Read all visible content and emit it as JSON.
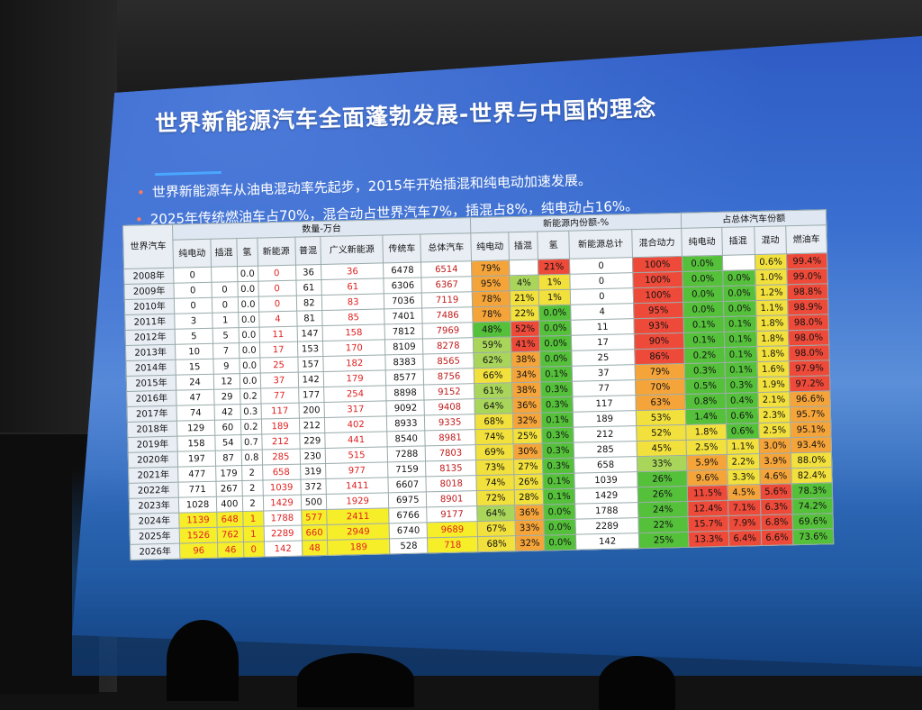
{
  "slide": {
    "title": "世界新能源汽车全面蓬勃发展-世界与中国的理念",
    "bullets": [
      "世界新能源车从油电混动率先起步，2015年开始插混和纯电动加速发展。",
      "2025年传统燃油车占70%，混合动占世界汽车7%，插混占8%，纯电动占16%。"
    ]
  },
  "table": {
    "corner": "世界汽车",
    "group_headers": [
      "数量-万台",
      "新能源内份额-%",
      "占总体汽车份额"
    ],
    "columns": [
      "纯电动",
      "插混",
      "氢",
      "新能源",
      "普混",
      "广义新能源",
      "传统车",
      "总体汽车",
      "纯电动",
      "插混",
      "氢",
      "新能源总计",
      "混合动力",
      "纯电动",
      "插混",
      "混动",
      "燃油车"
    ],
    "rows": [
      [
        "2008年",
        "0",
        "",
        "0.0",
        "0",
        "36",
        "36",
        "6478",
        "6514",
        "79%",
        "",
        "21%",
        "0",
        "100%",
        "0.0%",
        "",
        "0.6%",
        "99.4%"
      ],
      [
        "2009年",
        "0",
        "0",
        "0.0",
        "0",
        "61",
        "61",
        "6306",
        "6367",
        "95%",
        "4%",
        "1%",
        "0",
        "100%",
        "0.0%",
        "0.0%",
        "1.0%",
        "99.0%"
      ],
      [
        "2010年",
        "0",
        "0",
        "0.0",
        "0",
        "82",
        "83",
        "7036",
        "7119",
        "78%",
        "21%",
        "1%",
        "0",
        "100%",
        "0.0%",
        "0.0%",
        "1.2%",
        "98.8%"
      ],
      [
        "2011年",
        "3",
        "1",
        "0.0",
        "4",
        "81",
        "85",
        "7401",
        "7486",
        "78%",
        "22%",
        "0.0%",
        "4",
        "95%",
        "0.0%",
        "0.0%",
        "1.1%",
        "98.9%"
      ],
      [
        "2012年",
        "5",
        "5",
        "0.0",
        "11",
        "147",
        "158",
        "7812",
        "7969",
        "48%",
        "52%",
        "0.0%",
        "11",
        "93%",
        "0.1%",
        "0.1%",
        "1.8%",
        "98.0%"
      ],
      [
        "2013年",
        "10",
        "7",
        "0.0",
        "17",
        "153",
        "170",
        "8109",
        "8278",
        "59%",
        "41%",
        "0.0%",
        "17",
        "90%",
        "0.1%",
        "0.1%",
        "1.8%",
        "98.0%"
      ],
      [
        "2014年",
        "15",
        "9",
        "0.0",
        "25",
        "157",
        "182",
        "8383",
        "8565",
        "62%",
        "38%",
        "0.0%",
        "25",
        "86%",
        "0.2%",
        "0.1%",
        "1.8%",
        "98.0%"
      ],
      [
        "2015年",
        "24",
        "12",
        "0.0",
        "37",
        "142",
        "179",
        "8577",
        "8756",
        "66%",
        "34%",
        "0.1%",
        "37",
        "79%",
        "0.3%",
        "0.1%",
        "1.6%",
        "97.9%"
      ],
      [
        "2016年",
        "47",
        "29",
        "0.2",
        "77",
        "177",
        "254",
        "8898",
        "9152",
        "61%",
        "38%",
        "0.3%",
        "77",
        "70%",
        "0.5%",
        "0.3%",
        "1.9%",
        "97.2%"
      ],
      [
        "2017年",
        "74",
        "42",
        "0.3",
        "117",
        "200",
        "317",
        "9092",
        "9408",
        "64%",
        "36%",
        "0.3%",
        "117",
        "63%",
        "0.8%",
        "0.4%",
        "2.1%",
        "96.6%"
      ],
      [
        "2018年",
        "129",
        "60",
        "0.2",
        "189",
        "212",
        "402",
        "8933",
        "9335",
        "68%",
        "32%",
        "0.1%",
        "189",
        "53%",
        "1.4%",
        "0.6%",
        "2.3%",
        "95.7%"
      ],
      [
        "2019年",
        "158",
        "54",
        "0.7",
        "212",
        "229",
        "441",
        "8540",
        "8981",
        "74%",
        "25%",
        "0.3%",
        "212",
        "52%",
        "1.8%",
        "0.6%",
        "2.5%",
        "95.1%"
      ],
      [
        "2020年",
        "197",
        "87",
        "0.8",
        "285",
        "230",
        "515",
        "7288",
        "7803",
        "69%",
        "30%",
        "0.3%",
        "285",
        "45%",
        "2.5%",
        "1.1%",
        "3.0%",
        "93.4%"
      ],
      [
        "2021年",
        "477",
        "179",
        "2",
        "658",
        "319",
        "977",
        "7159",
        "8135",
        "73%",
        "27%",
        "0.3%",
        "658",
        "33%",
        "5.9%",
        "2.2%",
        "3.9%",
        "88.0%"
      ],
      [
        "2022年",
        "771",
        "267",
        "2",
        "1039",
        "372",
        "1411",
        "6607",
        "8018",
        "74%",
        "26%",
        "0.1%",
        "1039",
        "26%",
        "9.6%",
        "3.3%",
        "4.6%",
        "82.4%"
      ],
      [
        "2023年",
        "1028",
        "400",
        "2",
        "1429",
        "500",
        "1929",
        "6975",
        "8901",
        "72%",
        "28%",
        "0.1%",
        "1429",
        "26%",
        "11.5%",
        "4.5%",
        "5.6%",
        "78.3%"
      ],
      [
        "2024年",
        "1139",
        "648",
        "1",
        "1788",
        "577",
        "2411",
        "6766",
        "9177",
        "64%",
        "36%",
        "0.0%",
        "1788",
        "24%",
        "12.4%",
        "7.1%",
        "6.3%",
        "74.2%"
      ],
      [
        "2025年",
        "1526",
        "762",
        "1",
        "2289",
        "660",
        "2949",
        "6740",
        "9689",
        "67%",
        "33%",
        "0.0%",
        "2289",
        "22%",
        "15.7%",
        "7.9%",
        "6.8%",
        "69.6%"
      ],
      [
        "2026年",
        "96",
        "46",
        "0",
        "142",
        "48",
        "189",
        "528",
        "718",
        "68%",
        "32%",
        "0.0%",
        "142",
        "25%",
        "13.3%",
        "6.4%",
        "6.6%",
        "73.6%"
      ]
    ]
  }
}
